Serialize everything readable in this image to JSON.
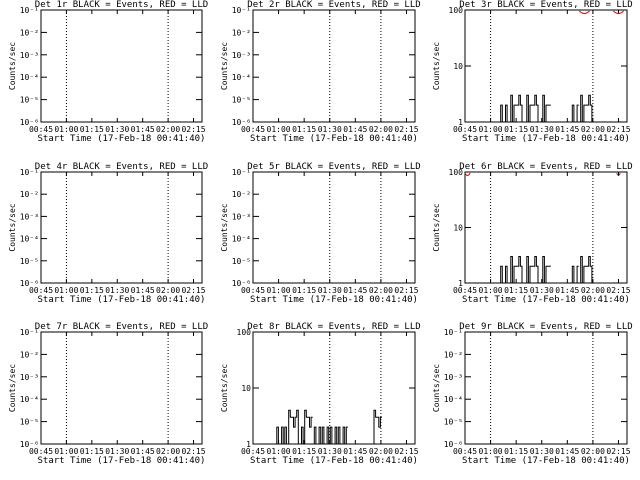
{
  "chart_data": [
    {
      "type": "line",
      "title": "Det 1r BLACK = Events, RED = LLD",
      "xlabel": "Start Time (17-Feb-18 00:41:40)",
      "ylabel": "Counts/sec",
      "yscale": "log",
      "ylim": [
        1e-06,
        0.1
      ],
      "y_tick_labels": [
        "10⁻⁶",
        "10⁻⁵",
        "10⁻⁴",
        "10⁻³",
        "10⁻²",
        "10⁻¹"
      ],
      "x_tick_labels": [
        "00:45",
        "01:00",
        "01:15",
        "01:30",
        "01:45",
        "02:00",
        "02:15"
      ],
      "x_dotted_lines": [
        "01:00",
        "02:00"
      ],
      "black_events": [],
      "red_lld": []
    },
    {
      "type": "line",
      "title": "Det 2r BLACK = Events, RED = LLD",
      "xlabel": "Start Time (17-Feb-18 00:41:40)",
      "ylabel": "Counts/sec",
      "yscale": "log",
      "ylim": [
        1e-06,
        0.1
      ],
      "y_tick_labels": [
        "10⁻⁶",
        "10⁻⁵",
        "10⁻⁴",
        "10⁻³",
        "10⁻²",
        "10⁻¹"
      ],
      "x_tick_labels": [
        "00:45",
        "01:00",
        "01:15",
        "01:30",
        "01:45",
        "02:00",
        "02:15"
      ],
      "x_dotted_lines": [
        "01:30",
        "02:00"
      ],
      "black_events": [],
      "red_lld": []
    },
    {
      "type": "line",
      "title": "Det 3r BLACK = Events, RED = LLD",
      "xlabel": "Start Time (17-Feb-18 00:41:40)",
      "ylabel": "Counts/sec",
      "yscale": "log",
      "ylim": [
        1,
        100
      ],
      "y_tick_labels": [
        "1",
        "10",
        "100"
      ],
      "x_tick_labels": [
        "00:45",
        "01:00",
        "01:15",
        "01:30",
        "01:45",
        "02:00",
        "02:15"
      ],
      "x_dotted_lines": [
        "01:00",
        "02:00"
      ],
      "black_events": [
        {
          "start": "01:05",
          "end": "01:10",
          "levels": [
            1,
            2
          ]
        },
        {
          "start": "01:10",
          "end": "01:35",
          "levels": [
            1,
            2,
            3
          ]
        },
        {
          "start": "01:47",
          "end": "01:51",
          "levels": [
            1,
            2
          ]
        },
        {
          "start": "01:51",
          "end": "02:00",
          "levels": [
            1,
            2,
            3
          ]
        }
      ],
      "red_lld": [
        {
          "start": "01:52",
          "end": "01:58",
          "level": 100
        },
        {
          "start": "02:12",
          "end": "02:18",
          "level": 100
        }
      ]
    },
    {
      "type": "line",
      "title": "Det 4r BLACK = Events, RED = LLD",
      "xlabel": "Start Time (17-Feb-18 00:41:40)",
      "ylabel": "Counts/sec",
      "yscale": "log",
      "ylim": [
        1e-06,
        0.1
      ],
      "y_tick_labels": [
        "10⁻⁶",
        "10⁻⁵",
        "10⁻⁴",
        "10⁻³",
        "10⁻²",
        "10⁻¹"
      ],
      "x_tick_labels": [
        "00:45",
        "01:00",
        "01:15",
        "01:30",
        "01:45",
        "02:00",
        "02:15"
      ],
      "x_dotted_lines": [
        "01:00",
        "02:00"
      ],
      "black_events": [],
      "red_lld": []
    },
    {
      "type": "line",
      "title": "Det 5r BLACK = Events, RED = LLD",
      "xlabel": "Start Time (17-Feb-18 00:41:40)",
      "ylabel": "Counts/sec",
      "yscale": "log",
      "ylim": [
        1e-06,
        0.1
      ],
      "y_tick_labels": [
        "10⁻⁶",
        "10⁻⁵",
        "10⁻⁴",
        "10⁻³",
        "10⁻²",
        "10⁻¹"
      ],
      "x_tick_labels": [
        "00:45",
        "01:00",
        "01:15",
        "01:30",
        "01:45",
        "02:00",
        "02:15"
      ],
      "x_dotted_lines": [
        "01:30",
        "02:00"
      ],
      "black_events": [],
      "red_lld": []
    },
    {
      "type": "line",
      "title": "Det 6r BLACK = Events, RED = LLD",
      "xlabel": "Start Time (17-Feb-18 00:41:40)",
      "ylabel": "Counts/sec",
      "yscale": "log",
      "ylim": [
        1,
        100
      ],
      "y_tick_labels": [
        "1",
        "10",
        "100"
      ],
      "x_tick_labels": [
        "00:45",
        "01:00",
        "01:15",
        "01:30",
        "01:45",
        "02:00",
        "02:15"
      ],
      "x_dotted_lines": [
        "01:00",
        "02:00"
      ],
      "black_events": [
        {
          "start": "01:05",
          "end": "01:10",
          "levels": [
            1,
            2
          ]
        },
        {
          "start": "01:10",
          "end": "01:35",
          "levels": [
            1,
            2,
            3
          ]
        },
        {
          "start": "01:47",
          "end": "01:51",
          "levels": [
            1,
            2
          ]
        },
        {
          "start": "01:51",
          "end": "02:00",
          "levels": [
            1,
            2,
            3
          ]
        }
      ],
      "red_lld": [
        {
          "start": "00:45",
          "end": "00:48",
          "level": 100
        },
        {
          "start": "02:14",
          "end": "02:16",
          "level": 100
        }
      ]
    },
    {
      "type": "line",
      "title": "Det 7r BLACK = Events, RED = LLD",
      "xlabel": "Start Time (17-Feb-18 00:41:40)",
      "ylabel": "Counts/sec",
      "yscale": "log",
      "ylim": [
        1e-06,
        0.1
      ],
      "y_tick_labels": [
        "10⁻⁶",
        "10⁻⁵",
        "10⁻⁴",
        "10⁻³",
        "10⁻²",
        "10⁻¹"
      ],
      "x_tick_labels": [
        "00:45",
        "01:00",
        "01:15",
        "01:30",
        "01:45",
        "02:00",
        "02:15"
      ],
      "x_dotted_lines": [
        "01:00",
        "02:00"
      ],
      "black_events": [],
      "red_lld": []
    },
    {
      "type": "line",
      "title": "Det 8r BLACK = Events, RED = LLD",
      "xlabel": "Start Time (17-Feb-18 00:41:40)",
      "ylabel": "Counts/sec",
      "yscale": "log",
      "ylim": [
        1,
        100
      ],
      "y_tick_labels": [
        "1",
        "10",
        "100"
      ],
      "x_tick_labels": [
        "00:45",
        "01:00",
        "01:15",
        "01:30",
        "01:45",
        "02:00",
        "02:15"
      ],
      "x_dotted_lines": [
        "01:30",
        "02:00"
      ],
      "black_events": [
        {
          "start": "00:58",
          "end": "01:05",
          "levels": [
            1,
            2
          ]
        },
        {
          "start": "01:05",
          "end": "01:20",
          "levels": [
            1,
            2,
            3,
            4
          ]
        },
        {
          "start": "01:20",
          "end": "01:40",
          "levels": [
            1,
            2
          ]
        },
        {
          "start": "01:55",
          "end": "02:00",
          "levels": [
            1,
            2,
            3,
            4
          ]
        }
      ],
      "red_lld": []
    },
    {
      "type": "line",
      "title": "Det 9r BLACK = Events, RED = LLD",
      "xlabel": "Start Time (17-Feb-18 00:41:40)",
      "ylabel": "Counts/sec",
      "yscale": "log",
      "ylim": [
        1e-06,
        0.1
      ],
      "y_tick_labels": [
        "10⁻⁶",
        "10⁻⁵",
        "10⁻⁴",
        "10⁻³",
        "10⁻²",
        "10⁻¹"
      ],
      "x_tick_labels": [
        "00:45",
        "01:00",
        "01:15",
        "01:30",
        "01:45",
        "02:00",
        "02:15"
      ],
      "x_dotted_lines": [
        "01:00",
        "02:00"
      ],
      "black_events": [],
      "red_lld": []
    }
  ],
  "colors": {
    "events": "#000000",
    "lld": "#ff0000",
    "background": "#ffffff"
  }
}
